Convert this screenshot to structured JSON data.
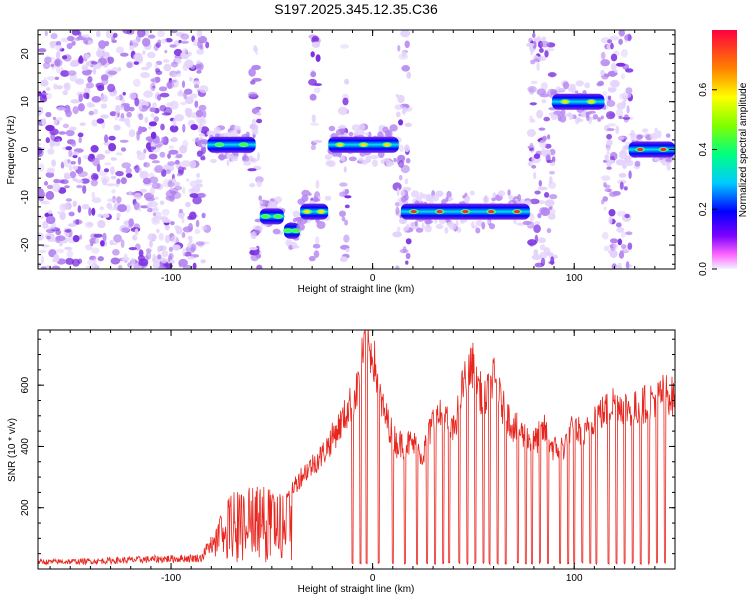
{
  "title": "S197.2025.345.12.35.C36",
  "colors": {
    "snr_line": "#e8261e",
    "blob_light": "#e3d2fb",
    "blob_mid": "#b383f0",
    "blob_dark": "#7a2ce0",
    "frame": "#000000"
  },
  "chart_data": [
    {
      "type": "heatmap",
      "xlabel": "Height of straight line (km)",
      "ylabel": "Frequency (Hz)",
      "xlim": [
        -166,
        150
      ],
      "ylim": [
        -25,
        25
      ],
      "xticks": [
        -100,
        0,
        100
      ],
      "yticks": [
        -20,
        -10,
        0,
        10,
        20
      ],
      "xtick_labels": [
        "-100",
        "0",
        "100"
      ],
      "ytick_labels": [
        "-20",
        "-10",
        "0",
        "10",
        "20"
      ],
      "colorbar": {
        "label": "Normalized spectral amplitude",
        "range": [
          0,
          0.8
        ],
        "ticks": [
          0,
          0.2,
          0.4,
          0.6
        ],
        "tick_labels": [
          "0.0",
          "0.2",
          "0.4",
          "0.6"
        ]
      },
      "noise_regions": [
        [
          -166,
          -82
        ],
        [
          -60,
          -56
        ],
        [
          -30,
          -27
        ],
        [
          -15,
          -12
        ],
        [
          12,
          18
        ],
        [
          78,
          90
        ],
        [
          114,
          128
        ]
      ],
      "ridges": [
        {
          "x_start": -82,
          "x_end": -58,
          "freq_hz": 1,
          "peak_amplitude": 0.4
        },
        {
          "x_start": -56,
          "x_end": -44,
          "freq_hz": -14,
          "peak_amplitude": 0.35
        },
        {
          "x_start": -44,
          "x_end": -36,
          "freq_hz": -17,
          "peak_amplitude": 0.45
        },
        {
          "x_start": -36,
          "x_end": -22,
          "freq_hz": -13,
          "peak_amplitude": 0.55
        },
        {
          "x_start": -22,
          "x_end": 13,
          "freq_hz": 1,
          "peak_amplitude": 0.5
        },
        {
          "x_start": 14,
          "x_end": 78,
          "freq_hz": -13,
          "peak_amplitude": 0.75
        },
        {
          "x_start": 89,
          "x_end": 115,
          "freq_hz": 10,
          "peak_amplitude": 0.6
        },
        {
          "x_start": 127,
          "x_end": 150,
          "freq_hz": 0,
          "peak_amplitude": 0.8
        }
      ]
    },
    {
      "type": "line",
      "xlabel": "Height of straight line (km)",
      "ylabel": "SNR (10 * v/v)",
      "xlim": [
        -166,
        150
      ],
      "ylim": [
        0,
        780
      ],
      "xticks": [
        -100,
        0,
        100
      ],
      "yticks": [
        200,
        400,
        600
      ],
      "xtick_labels": [
        "-100",
        "0",
        "100"
      ],
      "ytick_labels": [
        "200",
        "400",
        "600"
      ],
      "series": [
        {
          "name": "SNR",
          "envelope": {
            "x": [
              -166,
              -140,
              -110,
              -85,
              -78,
              -72,
              -65,
              -55,
              -45,
              -35,
              -25,
              -15,
              -8,
              -4,
              0,
              5,
              12,
              20,
              25,
              30,
              35,
              40,
              45,
              50,
              55,
              60,
              65,
              70,
              75,
              80,
              85,
              90,
              95,
              100,
              105,
              110,
              115,
              120,
              125,
              130,
              135,
              140,
              145,
              150
            ],
            "y": [
              25,
              28,
              35,
              40,
              120,
              230,
              250,
              260,
              230,
              330,
              400,
              520,
              620,
              780,
              760,
              560,
              440,
              440,
              400,
              520,
              540,
              480,
              650,
              720,
              580,
              670,
              560,
              500,
              470,
              440,
              490,
              420,
              430,
              500,
              460,
              540,
              550,
              590,
              570,
              560,
              580,
              600,
              620,
              600
            ]
          },
          "baseline": 15,
          "dropouts": [
            -10,
            -6,
            -3,
            3,
            10,
            16,
            22,
            27,
            31,
            35,
            38,
            43,
            47,
            51,
            55,
            58,
            62,
            66,
            72,
            76,
            79,
            83,
            87,
            93,
            97,
            100,
            104,
            108,
            111,
            117,
            121,
            125,
            129,
            133,
            137,
            141,
            145
          ]
        }
      ]
    }
  ]
}
